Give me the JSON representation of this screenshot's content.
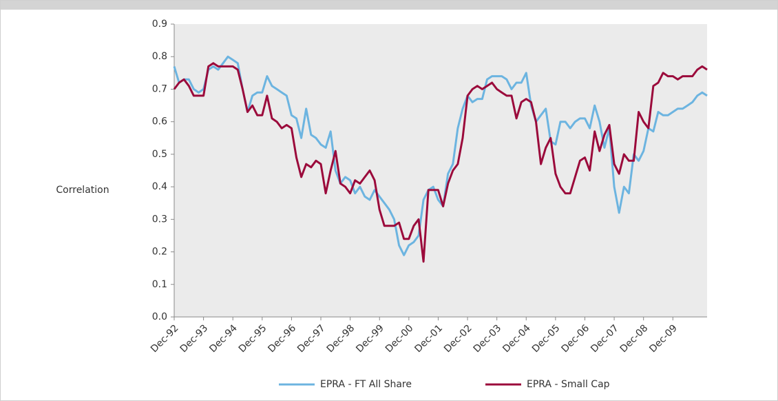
{
  "chart_data": {
    "type": "line",
    "y_label": "Correlation",
    "categories": [
      "Dec-92",
      null,
      null,
      null,
      null,
      null,
      "Dec-93",
      null,
      null,
      null,
      null,
      null,
      "Dec-94",
      null,
      null,
      null,
      null,
      null,
      "Dec-95",
      null,
      null,
      null,
      null,
      null,
      "Dec-96",
      null,
      null,
      null,
      null,
      null,
      "Dec-97",
      null,
      null,
      null,
      null,
      null,
      "Dec-98",
      null,
      null,
      null,
      null,
      null,
      "Dec-99",
      null,
      null,
      null,
      null,
      null,
      "Dec-00",
      null,
      null,
      null,
      null,
      null,
      "Dec-01",
      null,
      null,
      null,
      null,
      null,
      "Dec-02",
      null,
      null,
      null,
      null,
      null,
      "Dec-03",
      null,
      null,
      null,
      null,
      null,
      "Dec-04",
      null,
      null,
      null,
      null,
      null,
      "Dec-05",
      null,
      null,
      null,
      null,
      null,
      "Dec-06",
      null,
      null,
      null,
      null,
      null,
      "Dec-07",
      null,
      null,
      null,
      null,
      null,
      "Dec-08",
      null,
      null,
      null,
      null,
      null,
      "Dec-09",
      null,
      null,
      null,
      null,
      null,
      null,
      null
    ],
    "series": [
      {
        "name": "EPRA - FT All Share",
        "color": "#6cb4e0",
        "values": [
          0.77,
          0.72,
          0.73,
          0.73,
          0.7,
          0.69,
          0.7,
          0.76,
          0.77,
          0.76,
          0.78,
          0.8,
          0.79,
          0.78,
          0.7,
          0.63,
          0.68,
          0.69,
          0.69,
          0.74,
          0.71,
          0.7,
          0.69,
          0.68,
          0.62,
          0.61,
          0.55,
          0.64,
          0.56,
          0.55,
          0.53,
          0.52,
          0.57,
          0.45,
          0.41,
          0.43,
          0.42,
          0.38,
          0.4,
          0.37,
          0.36,
          0.39,
          0.37,
          0.35,
          0.33,
          0.3,
          0.22,
          0.19,
          0.22,
          0.23,
          0.25,
          0.36,
          0.39,
          0.4,
          0.36,
          0.34,
          0.44,
          0.47,
          0.58,
          0.64,
          0.68,
          0.66,
          0.67,
          0.67,
          0.73,
          0.74,
          0.74,
          0.74,
          0.73,
          0.7,
          0.72,
          0.72,
          0.75,
          0.65,
          0.6,
          0.62,
          0.64,
          0.54,
          0.53,
          0.6,
          0.6,
          0.58,
          0.6,
          0.61,
          0.61,
          0.58,
          0.65,
          0.6,
          0.52,
          0.58,
          0.4,
          0.32,
          0.4,
          0.38,
          0.5,
          0.48,
          0.51,
          0.58,
          0.57,
          0.63,
          0.62,
          0.62,
          0.63,
          0.64,
          0.64,
          0.65,
          0.66,
          0.68,
          0.69,
          0.68
        ]
      },
      {
        "name": "EPRA - Small Cap",
        "color": "#9b0a3b",
        "values": [
          0.7,
          0.72,
          0.73,
          0.71,
          0.68,
          0.68,
          0.68,
          0.77,
          0.78,
          0.77,
          0.77,
          0.77,
          0.77,
          0.76,
          0.7,
          0.63,
          0.65,
          0.62,
          0.62,
          0.68,
          0.61,
          0.6,
          0.58,
          0.59,
          0.58,
          0.49,
          0.43,
          0.47,
          0.46,
          0.48,
          0.47,
          0.38,
          0.45,
          0.51,
          0.41,
          0.4,
          0.38,
          0.42,
          0.41,
          0.43,
          0.45,
          0.42,
          0.33,
          0.28,
          0.28,
          0.28,
          0.29,
          0.24,
          0.24,
          0.28,
          0.3,
          0.17,
          0.39,
          0.39,
          0.39,
          0.34,
          0.41,
          0.45,
          0.47,
          0.55,
          0.68,
          0.7,
          0.71,
          0.7,
          0.71,
          0.72,
          0.7,
          0.69,
          0.68,
          0.68,
          0.61,
          0.66,
          0.67,
          0.66,
          0.6,
          0.47,
          0.52,
          0.55,
          0.44,
          0.4,
          0.38,
          0.38,
          0.43,
          0.48,
          0.49,
          0.45,
          0.57,
          0.51,
          0.56,
          0.59,
          0.47,
          0.44,
          0.5,
          0.48,
          0.48,
          0.63,
          0.6,
          0.58,
          0.71,
          0.72,
          0.75,
          0.74,
          0.74,
          0.73,
          0.74,
          0.74,
          0.74,
          0.76,
          0.77,
          0.76
        ]
      }
    ],
    "ylim": [
      0,
      0.9
    ],
    "yticks": [
      {
        "value": 0,
        "label": "0.0"
      },
      0.1,
      0.2,
      0.3,
      0.4,
      0.5,
      0.6,
      0.7,
      0.8,
      0.9
    ],
    "legend": "bottom"
  }
}
